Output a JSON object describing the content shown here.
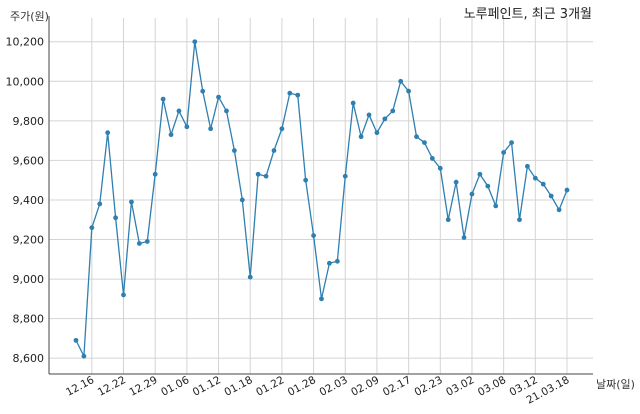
{
  "chart_data": {
    "type": "line",
    "title": "노루페인트, 최근 3개월",
    "ylabel": "주가(원)",
    "xlabel": "날짜(일)",
    "ylim": [
      8520,
      10320
    ],
    "yticks": [
      8600,
      8800,
      9000,
      9200,
      9400,
      9600,
      9800,
      10000,
      10200
    ],
    "ytick_labels": [
      "8,600",
      "8,800",
      "9,000",
      "9,200",
      "9,400",
      "9,600",
      "9,800",
      "10,000",
      "10,200"
    ],
    "xtick_labels": [
      "12.16",
      "12.22",
      "12.29",
      "01.06",
      "01.12",
      "01.18",
      "01.22",
      "01.28",
      "02.03",
      "02.09",
      "02.17",
      "02.23",
      "03.02",
      "03.08",
      "03.12",
      "21.03.18"
    ],
    "xtick_positions": [
      2,
      6,
      10,
      14,
      18,
      22,
      26,
      30,
      34,
      38,
      42,
      46,
      50,
      54,
      58,
      62
    ],
    "grid": true,
    "color": "#2f7fb0",
    "series": [
      {
        "values": [
          8690,
          8610,
          9260,
          9380,
          9740,
          9310,
          8920,
          9390,
          9180,
          9190,
          9530,
          9910,
          9730,
          9850,
          9770,
          10200,
          9950,
          9760,
          9920,
          9850,
          9650,
          9400,
          9010,
          9530,
          9520,
          9650,
          9760,
          9940,
          9930,
          9500,
          9220,
          8900,
          9080,
          9090,
          9520,
          9890,
          9720,
          9830,
          9740,
          9810,
          9850,
          10000,
          9950,
          9720,
          9690,
          9610,
          9560,
          9300,
          9490,
          9210,
          9430,
          9530,
          9470,
          9370,
          9640,
          9690,
          9300,
          9570,
          9510,
          9480,
          9420,
          9350,
          9450
        ]
      }
    ]
  }
}
